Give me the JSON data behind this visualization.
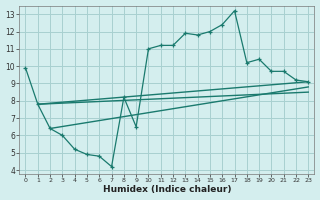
{
  "main_x": [
    0,
    1,
    2,
    3,
    4,
    5,
    6,
    7,
    8,
    9,
    10,
    11,
    12,
    13,
    14,
    15,
    16,
    17,
    18,
    19,
    20,
    21,
    22,
    23
  ],
  "main_y": [
    9.9,
    7.8,
    6.4,
    6.0,
    5.2,
    4.9,
    4.8,
    4.2,
    8.2,
    6.5,
    11.0,
    11.2,
    11.2,
    11.9,
    11.8,
    12.0,
    12.4,
    13.2,
    10.2,
    10.4,
    9.7,
    9.7,
    9.2,
    9.1
  ],
  "trend1_x": [
    1,
    23
  ],
  "trend1_y": [
    7.8,
    9.1
  ],
  "trend2_x": [
    1,
    23
  ],
  "trend2_y": [
    7.8,
    8.5
  ],
  "trend3_x": [
    2,
    23
  ],
  "trend3_y": [
    6.4,
    8.8
  ],
  "line_color": "#1a7a6e",
  "bg_color": "#d4eeee",
  "grid_color": "#a8d0d0",
  "xlabel": "Humidex (Indice chaleur)",
  "xlim": [
    -0.5,
    23.5
  ],
  "ylim": [
    3.8,
    13.5
  ],
  "yticks": [
    4,
    5,
    6,
    7,
    8,
    9,
    10,
    11,
    12,
    13
  ],
  "xticks": [
    0,
    1,
    2,
    3,
    4,
    5,
    6,
    7,
    8,
    9,
    10,
    11,
    12,
    13,
    14,
    15,
    16,
    17,
    18,
    19,
    20,
    21,
    22,
    23
  ],
  "xtick_labels": [
    "0",
    "1",
    "2",
    "3",
    "4",
    "5",
    "6",
    "7",
    "8",
    "9",
    "10",
    "11",
    "12",
    "13",
    "14",
    "15",
    "16",
    "17",
    "18",
    "19",
    "20",
    "21",
    "22",
    "23"
  ]
}
